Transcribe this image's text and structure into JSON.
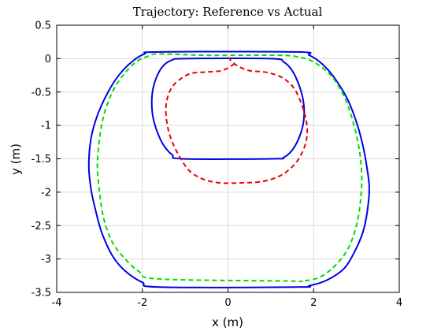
{
  "chart_data": {
    "type": "line",
    "title": "Trajectory: Reference vs Actual",
    "xlabel": "x (m)",
    "ylabel": "y (m)",
    "xlim": [
      -4,
      4
    ],
    "ylim": [
      -3.5,
      0.5
    ],
    "xticks": [
      -4,
      -2,
      0,
      2,
      4
    ],
    "xtick_labels": [
      "-4",
      "-2",
      "0",
      "2",
      "4"
    ],
    "yticks": [
      -3.5,
      -3,
      -2.5,
      -2,
      -1.5,
      -1,
      -0.5,
      0,
      0.5
    ],
    "ytick_labels": [
      "-3.5",
      "-3",
      "-2.5",
      "-2",
      "-1.5",
      "-1",
      "-0.5",
      "0",
      "0.5"
    ],
    "grid": true,
    "series": [
      {
        "style": "solid",
        "color": "#0000e6",
        "x": [
          -1.6,
          1.6,
          1.9,
          2.2,
          2.5,
          2.8,
          3.0,
          3.15,
          3.25,
          3.3,
          3.25,
          3.15,
          2.95,
          2.7,
          2.3,
          1.9,
          1.6,
          -1.6,
          -2.0,
          -2.4,
          -2.7,
          -2.95,
          -3.1,
          -3.2,
          -3.25,
          -3.2,
          -3.05,
          -2.8,
          -2.55,
          -2.25,
          -1.95,
          -1.6
        ],
        "y": [
          0.1,
          0.1,
          0.05,
          -0.08,
          -0.3,
          -0.62,
          -0.95,
          -1.3,
          -1.65,
          -1.95,
          -2.3,
          -2.6,
          -2.9,
          -3.15,
          -3.32,
          -3.4,
          -3.42,
          -3.42,
          -3.35,
          -3.18,
          -2.95,
          -2.6,
          -2.25,
          -1.95,
          -1.6,
          -1.2,
          -0.85,
          -0.5,
          -0.25,
          -0.05,
          0.07,
          0.1
        ]
      },
      {
        "style": "solid",
        "color": "#0000e6",
        "x": [
          -1.0,
          1.0,
          1.3,
          1.5,
          1.65,
          1.75,
          1.78,
          1.75,
          1.65,
          1.5,
          1.3,
          1.05,
          -1.05,
          -1.3,
          -1.5,
          -1.65,
          -1.75,
          -1.78,
          -1.75,
          -1.65,
          -1.5,
          -1.3,
          -1.0
        ],
        "y": [
          0.0,
          0.0,
          -0.05,
          -0.18,
          -0.38,
          -0.6,
          -0.8,
          -1.0,
          -1.2,
          -1.37,
          -1.48,
          -1.5,
          -1.5,
          -1.44,
          -1.3,
          -1.1,
          -0.88,
          -0.66,
          -0.45,
          -0.25,
          -0.1,
          -0.02,
          0.0
        ]
      },
      {
        "style": "dashed",
        "color": "#00dd00",
        "x": [
          -1.6,
          -0.5,
          1.1,
          1.6,
          2.0,
          2.4,
          2.7,
          2.9,
          3.05,
          3.12,
          3.1,
          3.0,
          2.8,
          2.5,
          2.15,
          1.75,
          1.4,
          -1.6,
          -2.05,
          -2.4,
          -2.7,
          -2.9,
          -3.0,
          -3.05,
          -3.0,
          -2.9,
          -2.7,
          -2.45,
          -2.15,
          -1.85,
          -1.6
        ],
        "y": [
          0.07,
          0.05,
          0.05,
          0.03,
          -0.05,
          -0.25,
          -0.55,
          -0.9,
          -1.3,
          -1.7,
          -2.1,
          -2.5,
          -2.85,
          -3.1,
          -3.27,
          -3.33,
          -3.33,
          -3.3,
          -3.2,
          -3.0,
          -2.75,
          -2.4,
          -2.0,
          -1.6,
          -1.2,
          -0.85,
          -0.5,
          -0.25,
          -0.05,
          0.04,
          0.07
        ]
      },
      {
        "style": "dashed",
        "color": "#ee0000",
        "x": [
          0.0,
          0.2,
          0.5,
          0.85,
          1.15,
          1.35,
          1.55,
          1.7,
          1.8,
          1.85,
          1.82,
          1.7,
          1.5,
          1.2,
          0.8,
          0.3,
          -0.2,
          -0.6,
          -0.9,
          -1.1,
          -1.28,
          -1.4,
          -1.45,
          -1.42,
          -1.3,
          -1.1,
          -0.85,
          -0.5,
          -0.15,
          0.1,
          0.2
        ],
        "y": [
          0.02,
          -0.1,
          -0.18,
          -0.2,
          -0.25,
          -0.32,
          -0.45,
          -0.65,
          -0.85,
          -1.05,
          -1.25,
          -1.45,
          -1.62,
          -1.76,
          -1.84,
          -1.86,
          -1.86,
          -1.8,
          -1.68,
          -1.5,
          -1.28,
          -1.05,
          -0.8,
          -0.6,
          -0.42,
          -0.3,
          -0.22,
          -0.2,
          -0.18,
          -0.1,
          -0.05
        ]
      }
    ]
  }
}
